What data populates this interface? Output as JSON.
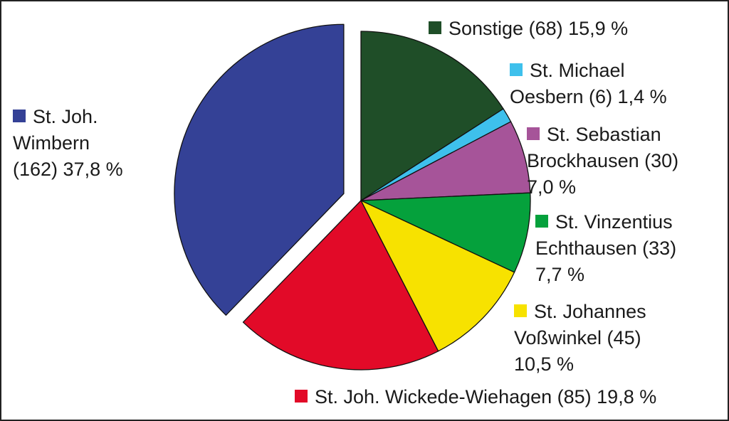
{
  "chart_data": {
    "type": "pie",
    "title": "",
    "slices": [
      {
        "name": "Sonstige",
        "count": 68,
        "percent": 15.9,
        "color": "#1f4e28",
        "label_lines": [
          "Sonstige (68) 15,9 %"
        ]
      },
      {
        "name": "St. Michael Oesbern",
        "count": 6,
        "percent": 1.4,
        "color": "#3ec0ec",
        "label_lines": [
          "St. Michael",
          "Oesbern (6) 1,4 %"
        ]
      },
      {
        "name": "St. Sebastian Brockhausen",
        "count": 30,
        "percent": 7.0,
        "color": "#a65499",
        "label_lines": [
          "St. Sebastian",
          "Brockhausen (30)",
          "7,0 %"
        ]
      },
      {
        "name": "St. Vinzentius Echthausen",
        "count": 33,
        "percent": 7.7,
        "color": "#05a13c",
        "label_lines": [
          "St. Vinzentius",
          "Echthausen (33)",
          "7,7 %"
        ]
      },
      {
        "name": "St. Johannes Voßwinkel",
        "count": 45,
        "percent": 10.5,
        "color": "#f7e200",
        "label_lines": [
          "St. Johannes",
          "Voßwinkel (45)",
          "10,5 %"
        ]
      },
      {
        "name": "St. Joh. Wickede-Wiehagen",
        "count": 85,
        "percent": 19.8,
        "color": "#e20a28",
        "label_lines": [
          "St. Joh. Wickede-Wiehagen (85) 19,8 %"
        ]
      },
      {
        "name": "St. Joh. Wimbern",
        "count": 162,
        "percent": 37.8,
        "color": "#344196",
        "label_lines": [
          "St. Joh.",
          "Wimbern",
          "(162) 37,8 %"
        ],
        "exploded": true
      }
    ],
    "legend": "labels beside slices"
  }
}
